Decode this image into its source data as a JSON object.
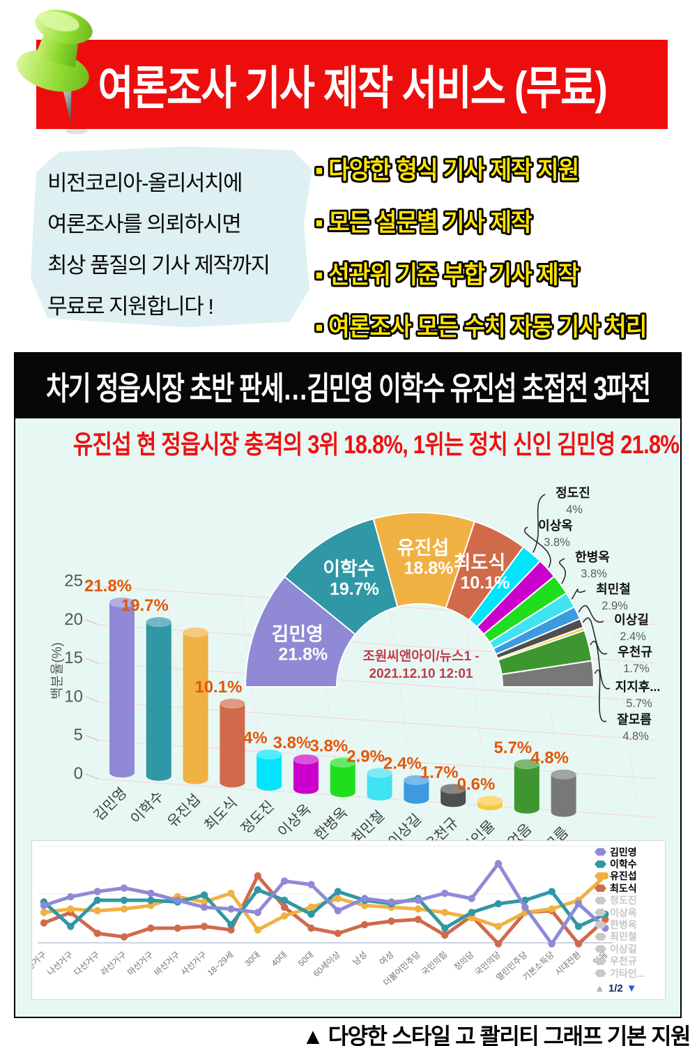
{
  "poster": {
    "top_banner": "여론조사 기사 제작 서비스 (무료)",
    "bubble_text": "비전코리아-올리서치에\n여론조사를 의뢰하시면\n최상 품질의 기사 제작까지\n무료로 지원합니다 !",
    "bullet_glyph": "▪",
    "bullets": [
      "다양한 형식 기사 제작 지원",
      "모든 설문별 기사 제작",
      "선관위 기준 부합 기사 제작",
      "여론조사 모든 수치 자동 기사 처리"
    ],
    "headline": "차기 정읍시장 초반 판세…김민영 이학수 유진섭 초접전 3파전",
    "subheadline": "유진섭 현 정읍시장 충격의 3위 18.8%, 1위는 정치 신인 김민영 21.8%",
    "caption": "▲ 다양한 스타일  고 콸리티 그래프 기본 지원"
  },
  "chart_data": [
    {
      "type": "pie",
      "shape": "half-donut",
      "labels": [
        "김민영",
        "이학수",
        "유진섭",
        "최도식",
        "정도진",
        "이상옥",
        "한병옥",
        "최민철",
        "이상길",
        "우천규",
        "기타인물",
        "지지후보없음",
        "잘모름"
      ],
      "values": [
        21.8,
        19.7,
        18.8,
        10.1,
        4,
        3.8,
        3.8,
        2.9,
        2.4,
        1.7,
        0.6,
        5.7,
        4.8
      ],
      "colors": [
        "#8f89d6",
        "#2f97a5",
        "#f0b143",
        "#d06a4a",
        "#00e5fb",
        "#cc00cc",
        "#1ede1e",
        "#40e3f2",
        "#3b9ae0",
        "#4f4f4f",
        "#f7c93e",
        "#3e9630",
        "#787878"
      ],
      "inner_labels": [
        {
          "label": "김민영",
          "value_text": "21.8%"
        },
        {
          "label": "이학수",
          "value_text": "19.7%"
        },
        {
          "label": "유진섭",
          "value_text": "18.8%"
        },
        {
          "label": "최도식",
          "value_text": "10.1%"
        }
      ],
      "callouts": [
        {
          "segment": 4,
          "label": "정도진",
          "value_text": "4%"
        },
        {
          "segment": 5,
          "label": "이상옥",
          "value_text": "3.8%"
        },
        {
          "segment": 6,
          "label": "한병옥",
          "value_text": "3.8%"
        },
        {
          "segment": 7,
          "label": "최민철",
          "value_text": "2.9%"
        },
        {
          "segment": 8,
          "label": "이상길",
          "value_text": "2.4%"
        },
        {
          "segment": 9,
          "label": "우천규",
          "value_text": "1.7%"
        },
        {
          "segment": 11,
          "label": "지지후...",
          "value_text": "5.7%"
        },
        {
          "segment": 12,
          "label": "잘모름",
          "value_text": "4.8%"
        }
      ],
      "center_note": "조원씨앤아이/뉴스1 -\n2021.12.10 12:01"
    },
    {
      "type": "bar",
      "style": "3d-cylinder",
      "categories": [
        "김민영",
        "이학수",
        "유진섭",
        "최도식",
        "정도진",
        "이상옥",
        "한병옥",
        "최민철",
        "이상길",
        "우천규",
        "기타인물",
        "지지후보없음",
        "잘모름"
      ],
      "values": [
        21.8,
        19.7,
        18.8,
        10.1,
        4,
        3.8,
        3.8,
        2.9,
        2.4,
        1.7,
        0.6,
        5.7,
        4.8
      ],
      "value_labels": [
        "21.8%",
        "19.7%",
        "",
        "10.1%",
        "4%",
        "3.8%",
        "3.8%",
        "2.9%",
        "2.4%",
        "1.7%",
        "0.6%",
        "5.7%",
        "4.8%"
      ],
      "colors": [
        "#8f89d6",
        "#2f97a5",
        "#f0b143",
        "#d06a4a",
        "#00e5fb",
        "#cc00cc",
        "#1ede1e",
        "#40e3f2",
        "#3b9ae0",
        "#4f4f4f",
        "#f7c93e",
        "#3e9630",
        "#787878"
      ],
      "ylabel": "백분율(%)",
      "yticks": [
        0,
        5,
        10,
        15,
        20,
        25
      ],
      "ylim": [
        0,
        25
      ]
    },
    {
      "type": "line",
      "categories": [
        "가선거구",
        "나선거구",
        "다선거구",
        "라선거구",
        "마선거구",
        "바선거구",
        "사선거구",
        "18~29세",
        "30대",
        "40대",
        "50대",
        "60세이상",
        "남성",
        "여성",
        "더불어민주당",
        "국민의힘",
        "정의당",
        "국민의당",
        "열린민주당",
        "기본소득당",
        "시대전환",
        "없음"
      ],
      "series": [
        {
          "name": "김민영",
          "color": "#8f89d6",
          "values": [
            19.5,
            22,
            23.5,
            24.5,
            23,
            21,
            19,
            18.5,
            17.5,
            26.5,
            25.5,
            18,
            21.5,
            20.5,
            21,
            23,
            21.5,
            31.5,
            19,
            8.5,
            20,
            13
          ]
        },
        {
          "name": "이학수",
          "color": "#2f97a5",
          "values": [
            20.5,
            13.5,
            21,
            21,
            21,
            20.5,
            22.5,
            14,
            24,
            21,
            17,
            23.5,
            21,
            20,
            21.5,
            13,
            17.5,
            20,
            21,
            23.5,
            13.5,
            17
          ]
        },
        {
          "name": "유진섭",
          "color": "#f0b143",
          "values": [
            17.5,
            18.5,
            18,
            18.5,
            19.5,
            22,
            20.5,
            23,
            12.5,
            16.5,
            19,
            21.5,
            19.5,
            19,
            18.5,
            17.5,
            16,
            13.5,
            17.5,
            18.5,
            21,
            28
          ]
        },
        {
          "name": "최도식",
          "color": "#d06a4a",
          "values": [
            14.5,
            17.5,
            11.5,
            10.5,
            13,
            13,
            13.5,
            12.5,
            28,
            19,
            13,
            11.5,
            14,
            15,
            15.5,
            11,
            16.5,
            8.5,
            17.5,
            18,
            8.5,
            15.5
          ]
        }
      ],
      "legend_inactive": [
        "정도진",
        "이상옥",
        "한병옥",
        "최민철",
        "이상길",
        "우천규",
        "기타인..."
      ],
      "pagination": {
        "up_glyph": "▲",
        "label": "1/2",
        "down_glyph": "▼"
      },
      "ylim": [
        8,
        32
      ],
      "grid": true,
      "legend_position": "right"
    }
  ]
}
